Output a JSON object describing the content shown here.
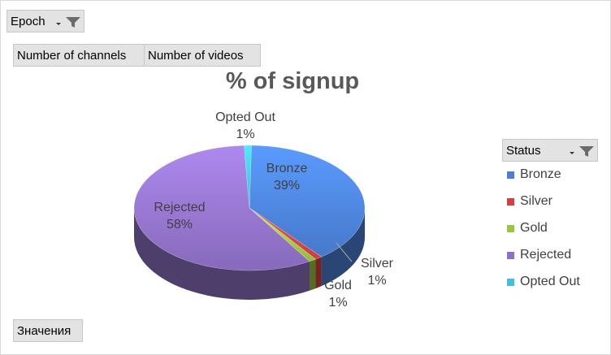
{
  "filters": {
    "epoch_label": "Epoch",
    "fields": [
      "Number of channels",
      "Number of videos"
    ],
    "values_label": "Значения"
  },
  "legend_title": "Status",
  "colors": {
    "Bronze": "#4a7fd4",
    "Silver": "#d44040",
    "Gold": "#9bc63d",
    "Rejected": "#8e70c4",
    "Opted Out": "#3fc1de"
  },
  "chart_data": {
    "type": "pie",
    "title": "% of signup",
    "categories": [
      "Bronze",
      "Silver",
      "Gold",
      "Rejected",
      "Opted Out"
    ],
    "values": [
      39,
      1,
      1,
      58,
      1
    ],
    "data_labels": [
      "39%",
      "1%",
      "1%",
      "58%",
      "1%"
    ],
    "legend_position": "right",
    "style": "3d"
  }
}
